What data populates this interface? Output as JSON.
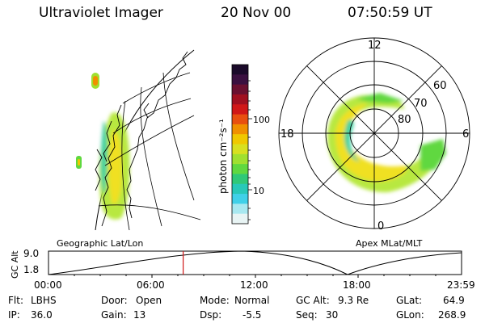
{
  "header": {
    "instrument": "Ultraviolet Imager",
    "date": "20 Nov 00",
    "time": "07:50:59 UT"
  },
  "colorbar": {
    "units": "photon cm⁻²s⁻¹",
    "tick_labels": [
      "100",
      "10"
    ],
    "colors_top_to_bottom": [
      "#1a0a2a",
      "#3a1040",
      "#6a1030",
      "#a01020",
      "#d01818",
      "#e85010",
      "#f09000",
      "#f0c800",
      "#d8e020",
      "#a0e030",
      "#60d840",
      "#30c878",
      "#28c8b8",
      "#40d0e8",
      "#a8e8f0",
      "#e8f4f4"
    ]
  },
  "polar_plot": {
    "mlt_labels": [
      "12",
      "18",
      "6",
      "0"
    ],
    "mlat_labels": [
      "60",
      "70",
      "80"
    ]
  },
  "geo_label": "Geographic Lat/Lon",
  "apex_label": "Apex MLat/MLT",
  "orbit_plot": {
    "ylabel": "GC Alt",
    "yticks": [
      "9.0",
      "1.8"
    ],
    "xticks": [
      "00:00",
      "06:00",
      "12:00",
      "18:00",
      "23:59"
    ],
    "current_time_fraction": 0.326
  },
  "status": {
    "flt_label": "Flt:",
    "flt_value": "LBHS",
    "ip_label": "IP:",
    "ip_value": "36.0",
    "door_label": "Door:",
    "door_value": "Open",
    "gain_label": "Gain:",
    "gain_value": "13",
    "mode_label": "Mode:",
    "mode_value": "Normal",
    "dsp_label": "Dsp:",
    "dsp_value": "-5.5",
    "gcalt_label": "GC Alt:",
    "gcalt_value": "9.3 Re",
    "seq_label": "Seq:",
    "seq_value": "30",
    "glat_label": "GLat:",
    "glat_value": "64.9",
    "glon_label": "GLon:",
    "glon_value": "268.9"
  }
}
